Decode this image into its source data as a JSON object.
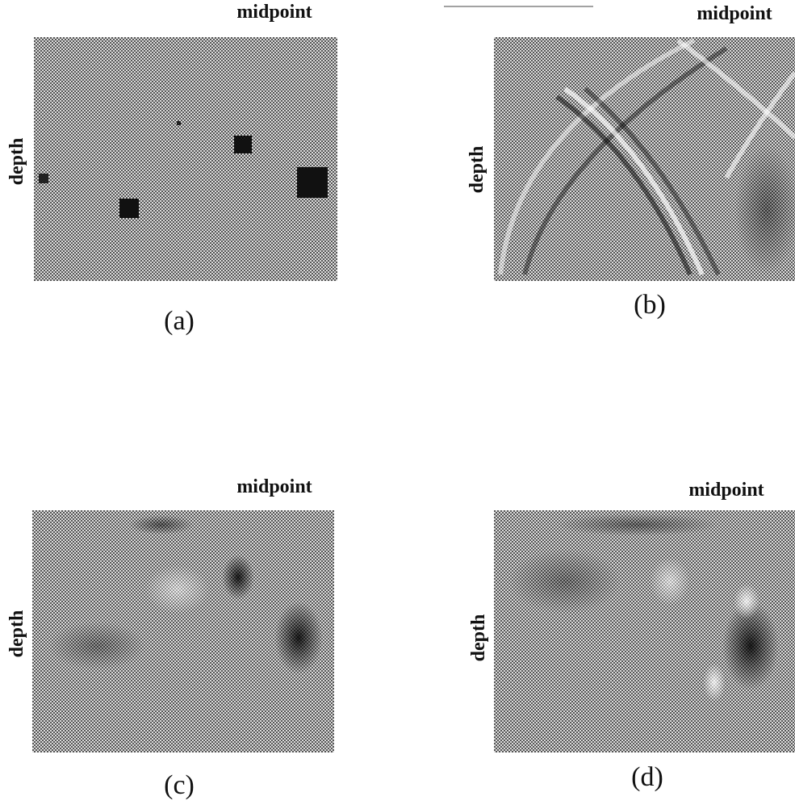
{
  "panels": [
    {
      "x_label": "midpoint",
      "y_label": "depth",
      "caption": "(a)"
    },
    {
      "x_label": "midpoint",
      "y_label": "depth",
      "caption": "(b)"
    },
    {
      "x_label": "midpoint",
      "y_label": "depth",
      "caption": "(c)"
    },
    {
      "x_label": "midpoint",
      "y_label": "depth",
      "caption": "(d)"
    }
  ]
}
